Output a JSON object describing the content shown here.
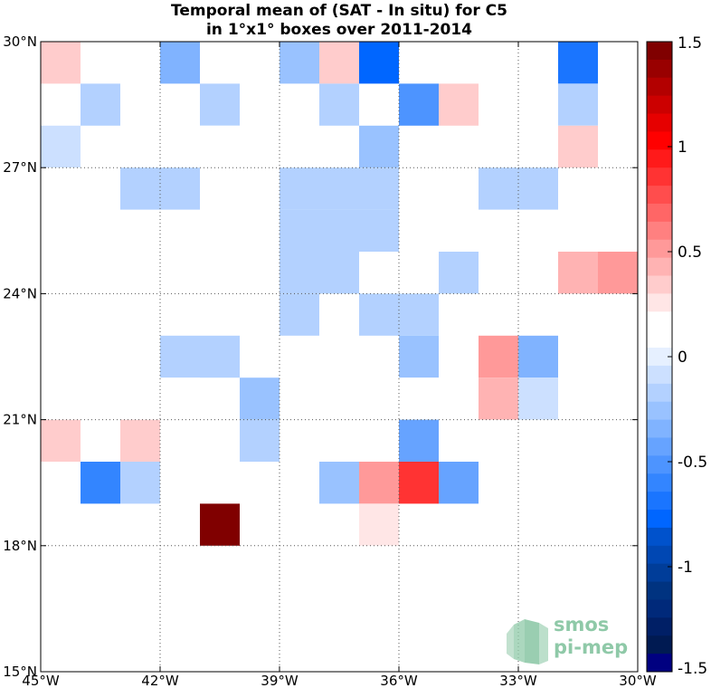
{
  "chart_data": {
    "type": "heatmap",
    "title": "Temporal mean of (SAT - In situ) for C5",
    "subtitle": "in 1°x1° boxes over 2011-2014",
    "xlabel": "",
    "ylabel": "",
    "xlim": [
      -45,
      -30
    ],
    "ylim": [
      15,
      30
    ],
    "x_ticks": [
      -45,
      -42,
      -39,
      -36,
      -33,
      -30
    ],
    "x_tick_labels": [
      "45°W",
      "42°W",
      "39°W",
      "36°W",
      "33°W",
      "30°W"
    ],
    "y_ticks": [
      15,
      18,
      21,
      24,
      27,
      30
    ],
    "y_tick_labels": [
      "15°N",
      "18°N",
      "21°N",
      "24°N",
      "27°N",
      "30°N"
    ],
    "grid": true,
    "cell_size_deg": 1,
    "colorbar": {
      "min": -1.5,
      "max": 1.5,
      "ticks": [
        1.5,
        1,
        0.5,
        0,
        -0.5,
        -1,
        -1.5
      ],
      "tick_labels": [
        "1.5",
        "1",
        "0.5",
        "0",
        "-0.5",
        "-1",
        "-1.5"
      ],
      "colors": [
        "#800000",
        "#990000",
        "#b30000",
        "#cc0000",
        "#e60000",
        "#ff0000",
        "#ff1a1a",
        "#ff3333",
        "#ff4d4d",
        "#ff6666",
        "#ff8080",
        "#ff9999",
        "#ffb3b3",
        "#ffcccc",
        "#ffe6e6",
        "#ffffff",
        "#ffffff",
        "#e6f0ff",
        "#cce0ff",
        "#b3d1ff",
        "#99c2ff",
        "#80b3ff",
        "#66a3ff",
        "#4d94ff",
        "#3385ff",
        "#1a75ff",
        "#0066ff",
        "#0052cc",
        "#0047b3",
        "#003d99",
        "#003380",
        "#00297a",
        "#001f66",
        "#001a52",
        "#000080"
      ]
    },
    "cells": [
      {
        "lon": -45,
        "lat": 29,
        "value": 0.35
      },
      {
        "lon": -42,
        "lat": 29,
        "value": -0.3
      },
      {
        "lon": -39,
        "lat": 29,
        "value": -0.25
      },
      {
        "lon": -38,
        "lat": 29,
        "value": 0.35
      },
      {
        "lon": -37,
        "lat": 29,
        "value": -0.8
      },
      {
        "lon": -32,
        "lat": 29,
        "value": -0.65
      },
      {
        "lon": -44,
        "lat": 28,
        "value": -0.2
      },
      {
        "lon": -41,
        "lat": 28,
        "value": -0.15
      },
      {
        "lon": -40,
        "lat": 28,
        "value": 0.15
      },
      {
        "lon": -38,
        "lat": 28,
        "value": -0.15
      },
      {
        "lon": -36,
        "lat": 28,
        "value": -0.55
      },
      {
        "lon": -35,
        "lat": 28,
        "value": 0.35
      },
      {
        "lon": -32,
        "lat": 28,
        "value": -0.15
      },
      {
        "lon": -45,
        "lat": 27,
        "value": -0.1
      },
      {
        "lon": -41,
        "lat": 27,
        "value": 0.15
      },
      {
        "lon": -37,
        "lat": 27,
        "value": -0.25
      },
      {
        "lon": -32,
        "lat": 27,
        "value": 0.3
      },
      {
        "lon": -45,
        "lat": 26,
        "value": 0.15
      },
      {
        "lon": -43,
        "lat": 26,
        "value": -0.15
      },
      {
        "lon": -42,
        "lat": 26,
        "value": -0.15
      },
      {
        "lon": -39,
        "lat": 26,
        "value": -0.15
      },
      {
        "lon": -38,
        "lat": 26,
        "value": -0.15
      },
      {
        "lon": -37,
        "lat": 26,
        "value": -0.15
      },
      {
        "lon": -34,
        "lat": 26,
        "value": -0.15
      },
      {
        "lon": -33,
        "lat": 26,
        "value": -0.15
      },
      {
        "lon": -39,
        "lat": 25,
        "value": -0.15
      },
      {
        "lon": -38,
        "lat": 25,
        "value": -0.15
      },
      {
        "lon": -37,
        "lat": 25,
        "value": -0.15
      },
      {
        "lon": -32,
        "lat": 25,
        "value": 0.15
      },
      {
        "lon": -39,
        "lat": 24,
        "value": -0.15
      },
      {
        "lon": -38,
        "lat": 24,
        "value": -0.15
      },
      {
        "lon": -35,
        "lat": 24,
        "value": -0.15
      },
      {
        "lon": -33,
        "lat": 24,
        "value": 0.15
      },
      {
        "lon": -32,
        "lat": 24,
        "value": 0.4
      },
      {
        "lon": -31,
        "lat": 24,
        "value": 0.55
      },
      {
        "lon": -39,
        "lat": 23,
        "value": -0.15
      },
      {
        "lon": -37,
        "lat": 23,
        "value": -0.15
      },
      {
        "lon": -36,
        "lat": 23,
        "value": -0.15
      },
      {
        "lon": -42,
        "lat": 22,
        "value": -0.15
      },
      {
        "lon": -41,
        "lat": 22,
        "value": -0.15
      },
      {
        "lon": -36,
        "lat": 22,
        "value": -0.25
      },
      {
        "lon": -34,
        "lat": 22,
        "value": 0.55
      },
      {
        "lon": -33,
        "lat": 22,
        "value": -0.3
      },
      {
        "lon": -42,
        "lat": 21,
        "value": 0.15
      },
      {
        "lon": -40,
        "lat": 21,
        "value": -0.25
      },
      {
        "lon": -36,
        "lat": 21,
        "value": 0.15
      },
      {
        "lon": -34,
        "lat": 21,
        "value": 0.4
      },
      {
        "lon": -33,
        "lat": 21,
        "value": -0.1
      },
      {
        "lon": -45,
        "lat": 20,
        "value": 0.3
      },
      {
        "lon": -43,
        "lat": 20,
        "value": 0.3
      },
      {
        "lon": -40,
        "lat": 20,
        "value": -0.15
      },
      {
        "lon": -36,
        "lat": 20,
        "value": -0.4
      },
      {
        "lon": -44,
        "lat": 19,
        "value": -0.6
      },
      {
        "lon": -43,
        "lat": 19,
        "value": -0.15
      },
      {
        "lon": -38,
        "lat": 19,
        "value": -0.25
      },
      {
        "lon": -37,
        "lat": 19,
        "value": 0.55
      },
      {
        "lon": -36,
        "lat": 19,
        "value": 0.85
      },
      {
        "lon": -35,
        "lat": 19,
        "value": -0.45
      },
      {
        "lon": -41,
        "lat": 18,
        "value": 1.5
      },
      {
        "lon": -37,
        "lat": 18,
        "value": 0.25
      }
    ]
  },
  "logo": {
    "line1": "smos",
    "line2": "pi-mep",
    "color": "#8fc9a8"
  }
}
